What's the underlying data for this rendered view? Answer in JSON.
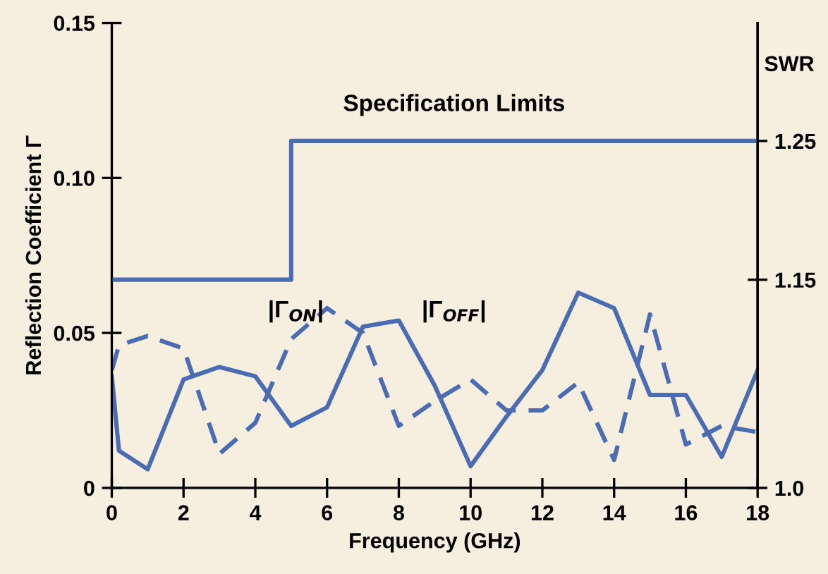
{
  "chart_data": {
    "type": "line",
    "xlabel": "Frequency (GHz)",
    "ylabel": "Reflection Coefficient Γ",
    "y2label": "SWR",
    "xlim": [
      0,
      18
    ],
    "xticks": [
      0,
      2,
      4,
      6,
      8,
      10,
      12,
      14,
      16,
      18
    ],
    "ylim": [
      0,
      0.15
    ],
    "yticks": [
      0,
      0.05,
      {
        "value": 0.1,
        "label": "0.10"
      },
      0.15
    ],
    "y2lim": [
      1.0,
      1.335
    ],
    "y2ticks": [
      {
        "value": 1.0,
        "label": "1.0"
      },
      1.15,
      1.25
    ],
    "grid": false,
    "legend": false,
    "marker": "none",
    "series": [
      {
        "type": "step",
        "axis": "y2",
        "color": "#4a6cb3",
        "line_style": "solid",
        "x": [
          0,
          5,
          18
        ],
        "values": [
          1.15,
          1.25,
          1.25
        ]
      },
      {
        "color": "#4a6cb3",
        "line_style": "solid",
        "x": [
          0,
          0.2,
          1,
          2,
          3,
          4,
          5,
          6,
          7,
          8,
          9,
          10,
          11,
          12,
          13,
          14,
          15,
          16,
          17,
          18
        ],
        "values": [
          0.036,
          0.012,
          0.006,
          0.035,
          0.039,
          0.036,
          0.02,
          0.026,
          0.052,
          0.054,
          0.033,
          0.007,
          0.023,
          0.038,
          0.063,
          0.058,
          0.03,
          0.03,
          0.01,
          0.038
        ]
      },
      {
        "color": "#4a6cb3",
        "line_style": "dashed",
        "x": [
          0,
          0.2,
          1,
          2,
          3,
          4,
          5,
          6,
          7,
          8,
          9,
          10,
          11,
          12,
          13,
          14,
          15,
          16,
          17,
          18
        ],
        "values": [
          0.038,
          0.046,
          0.049,
          0.045,
          0.011,
          0.021,
          0.048,
          0.058,
          0.05,
          0.02,
          0.028,
          0.035,
          0.025,
          0.025,
          0.034,
          0.009,
          0.056,
          0.014,
          0.02,
          0.018
        ]
      }
    ],
    "annotations": [
      "Specification Limits",
      "|Γ$_{ON}$|",
      "|Γ$_{OFF}$|"
    ]
  }
}
